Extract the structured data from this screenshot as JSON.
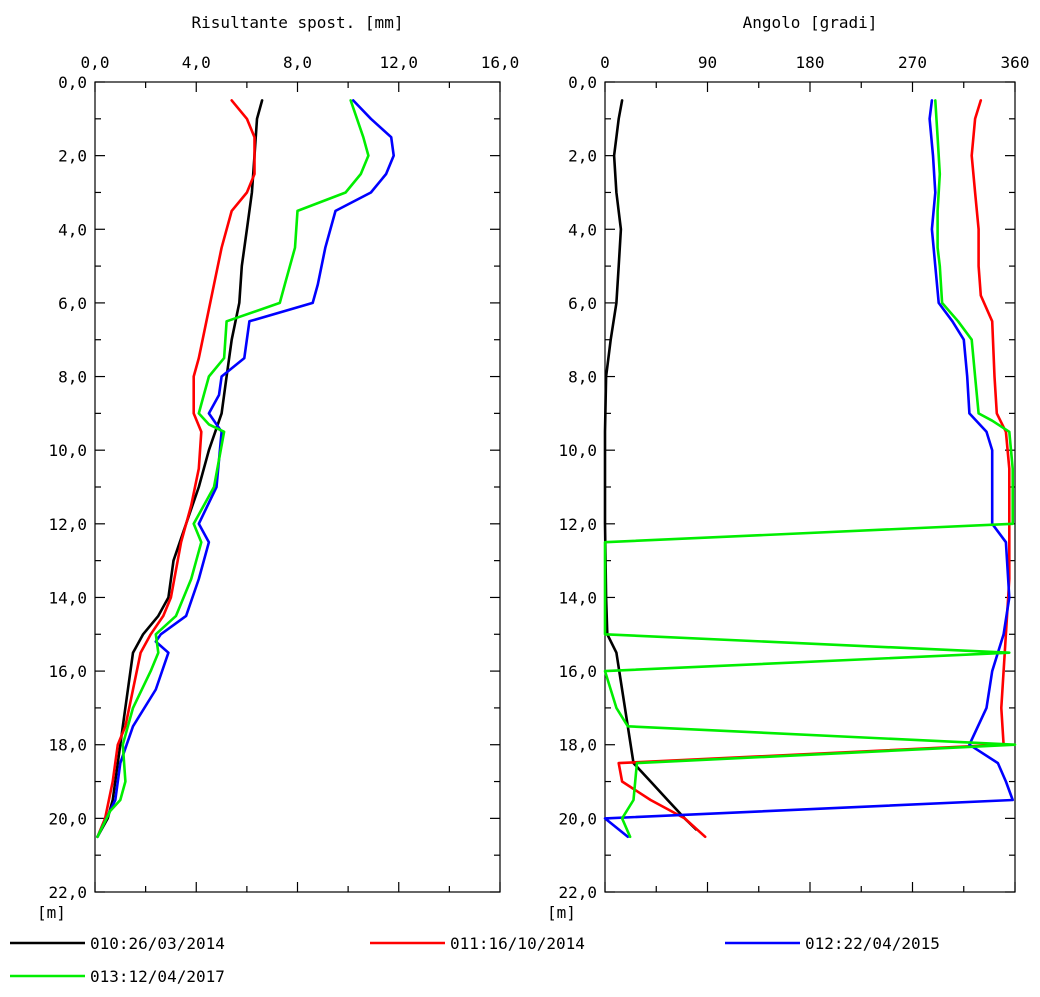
{
  "legend": [
    {
      "label": "010:26/03/2014",
      "color": "#000000"
    },
    {
      "label": "011:16/10/2014",
      "color": "#ff0000"
    },
    {
      "label": "012:22/04/2015",
      "color": "#0000ff"
    },
    {
      "label": "013:12/04/2017",
      "color": "#00ee00"
    }
  ],
  "chart_data": [
    {
      "type": "line",
      "title": "Risultante spost. [mm]",
      "ylabel": "[m]",
      "x_axis": {
        "range": [
          0,
          16
        ],
        "position": "top",
        "ticks": [
          "0,0",
          "4,0",
          "8,0",
          "12,0",
          "16,0"
        ]
      },
      "y_axis": {
        "range": [
          0,
          22
        ],
        "inverted": true,
        "ticks": [
          "0,0",
          "2,0",
          "4,0",
          "6,0",
          "8,0",
          "10,0",
          "12,0",
          "14,0",
          "16,0",
          "18,0",
          "20,0",
          "22,0"
        ]
      },
      "series": [
        {
          "name": "010:26/03/2014",
          "color": "#000000",
          "points": [
            [
              6.6,
              0.5
            ],
            [
              6.4,
              1.0
            ],
            [
              6.3,
              2.0
            ],
            [
              6.2,
              3.0
            ],
            [
              6.0,
              4.0
            ],
            [
              5.8,
              5.0
            ],
            [
              5.7,
              6.0
            ],
            [
              5.4,
              7.0
            ],
            [
              5.2,
              8.0
            ],
            [
              5.0,
              9.0
            ],
            [
              4.5,
              10.0
            ],
            [
              4.1,
              11.0
            ],
            [
              3.6,
              12.0
            ],
            [
              3.1,
              13.0
            ],
            [
              2.9,
              14.0
            ],
            [
              2.5,
              14.5
            ],
            [
              1.9,
              15.0
            ],
            [
              1.5,
              15.5
            ],
            [
              1.3,
              16.5
            ],
            [
              1.1,
              17.5
            ],
            [
              0.9,
              18.5
            ],
            [
              0.7,
              19.5
            ],
            [
              0.5,
              20.0
            ],
            [
              0.1,
              20.5
            ]
          ]
        },
        {
          "name": "011:16/10/2014",
          "color": "#ff0000",
          "points": [
            [
              5.4,
              0.5
            ],
            [
              6.0,
              1.0
            ],
            [
              6.3,
              1.5
            ],
            [
              6.3,
              2.5
            ],
            [
              6.0,
              3.0
            ],
            [
              5.4,
              3.5
            ],
            [
              5.0,
              4.5
            ],
            [
              4.7,
              5.5
            ],
            [
              4.4,
              6.5
            ],
            [
              4.1,
              7.5
            ],
            [
              3.9,
              8.0
            ],
            [
              3.9,
              9.0
            ],
            [
              4.2,
              9.5
            ],
            [
              4.1,
              10.5
            ],
            [
              3.8,
              11.5
            ],
            [
              3.4,
              12.5
            ],
            [
              3.0,
              14.0
            ],
            [
              2.7,
              14.5
            ],
            [
              2.2,
              15.0
            ],
            [
              1.8,
              15.5
            ],
            [
              1.5,
              16.5
            ],
            [
              1.2,
              17.5
            ],
            [
              0.9,
              18.0
            ],
            [
              0.7,
              19.0
            ],
            [
              0.4,
              20.0
            ],
            [
              0.1,
              20.5
            ]
          ]
        },
        {
          "name": "012:22/04/2015",
          "color": "#0000ff",
          "points": [
            [
              10.2,
              0.5
            ],
            [
              10.9,
              1.0
            ],
            [
              11.7,
              1.5
            ],
            [
              11.8,
              2.0
            ],
            [
              11.5,
              2.5
            ],
            [
              10.9,
              3.0
            ],
            [
              9.5,
              3.5
            ],
            [
              9.1,
              4.5
            ],
            [
              8.8,
              5.5
            ],
            [
              8.6,
              6.0
            ],
            [
              6.1,
              6.5
            ],
            [
              5.9,
              7.5
            ],
            [
              5.0,
              8.0
            ],
            [
              4.9,
              8.5
            ],
            [
              4.5,
              9.0
            ],
            [
              5.0,
              9.5
            ],
            [
              4.8,
              11.0
            ],
            [
              4.1,
              12.0
            ],
            [
              4.5,
              12.5
            ],
            [
              4.1,
              13.5
            ],
            [
              3.6,
              14.5
            ],
            [
              2.6,
              15.0
            ],
            [
              2.4,
              15.2
            ],
            [
              2.9,
              15.5
            ],
            [
              2.4,
              16.5
            ],
            [
              1.5,
              17.5
            ],
            [
              1.0,
              18.5
            ],
            [
              0.8,
              19.5
            ],
            [
              0.1,
              20.5
            ]
          ]
        },
        {
          "name": "013:12/04/2017",
          "color": "#00ee00",
          "points": [
            [
              10.1,
              0.5
            ],
            [
              10.6,
              1.5
            ],
            [
              10.8,
              2.0
            ],
            [
              10.5,
              2.5
            ],
            [
              9.9,
              3.0
            ],
            [
              8.0,
              3.5
            ],
            [
              7.9,
              4.5
            ],
            [
              7.5,
              5.5
            ],
            [
              7.3,
              6.0
            ],
            [
              5.2,
              6.5
            ],
            [
              5.1,
              7.5
            ],
            [
              4.5,
              8.0
            ],
            [
              4.3,
              8.5
            ],
            [
              4.1,
              9.0
            ],
            [
              4.5,
              9.3
            ],
            [
              5.1,
              9.5
            ],
            [
              4.7,
              11.0
            ],
            [
              3.9,
              12.0
            ],
            [
              4.2,
              12.5
            ],
            [
              3.8,
              13.5
            ],
            [
              3.2,
              14.5
            ],
            [
              2.4,
              15.0
            ],
            [
              2.5,
              15.5
            ],
            [
              2.2,
              16.0
            ],
            [
              1.5,
              17.0
            ],
            [
              1.1,
              18.0
            ],
            [
              1.2,
              19.0
            ],
            [
              1.0,
              19.5
            ],
            [
              0.6,
              19.8
            ],
            [
              0.1,
              20.5
            ]
          ]
        }
      ]
    },
    {
      "type": "line",
      "title": "Angolo [gradi]",
      "ylabel": "[m]",
      "x_axis": {
        "range": [
          0,
          360
        ],
        "position": "top",
        "ticks": [
          "0",
          "90",
          "180",
          "270",
          "360"
        ]
      },
      "y_axis": {
        "range": [
          0,
          22
        ],
        "inverted": true,
        "ticks": [
          "0,0",
          "2,0",
          "4,0",
          "6,0",
          "8,0",
          "10,0",
          "12,0",
          "14,0",
          "16,0",
          "18,0",
          "20,0",
          "22,0"
        ]
      },
      "series": [
        {
          "name": "010:26/03/2014",
          "color": "#000000",
          "points": [
            [
              15,
              0.5
            ],
            [
              12,
              1.0
            ],
            [
              8,
              2.0
            ],
            [
              10,
              3.0
            ],
            [
              14,
              4.0
            ],
            [
              12,
              5.0
            ],
            [
              10,
              6.0
            ],
            [
              5,
              7.0
            ],
            [
              1,
              8.0
            ],
            [
              0,
              9.5
            ],
            [
              0,
              12.0
            ],
            [
              1,
              14.0
            ],
            [
              2,
              15.0
            ],
            [
              10,
              15.5
            ],
            [
              15,
              16.5
            ],
            [
              20,
              17.5
            ],
            [
              25,
              18.5
            ],
            [
              40,
              19.0
            ],
            [
              55,
              19.5
            ],
            [
              70,
              20.0
            ],
            [
              80,
              20.3
            ]
          ]
        },
        {
          "name": "011:16/10/2014",
          "color": "#ff0000",
          "points": [
            [
              330,
              0.5
            ],
            [
              325,
              1.0
            ],
            [
              322,
              2.0
            ],
            [
              325,
              3.0
            ],
            [
              328,
              4.0
            ],
            [
              328,
              5.0
            ],
            [
              330,
              5.8
            ],
            [
              340,
              6.5
            ],
            [
              342,
              8.0
            ],
            [
              344,
              9.0
            ],
            [
              352,
              9.5
            ],
            [
              355,
              10.5
            ],
            [
              355,
              12.0
            ],
            [
              355,
              13.5
            ],
            [
              352,
              15.0
            ],
            [
              350,
              16.0
            ],
            [
              348,
              17.0
            ],
            [
              350,
              18.0
            ],
            [
              12,
              18.5
            ],
            [
              15,
              19.0
            ],
            [
              40,
              19.5
            ],
            [
              70,
              20.0
            ],
            [
              88,
              20.5
            ]
          ]
        },
        {
          "name": "012:22/04/2015",
          "color": "#0000ff",
          "points": [
            [
              287,
              0.5
            ],
            [
              285,
              1.0
            ],
            [
              288,
              2.0
            ],
            [
              290,
              3.0
            ],
            [
              287,
              4.0
            ],
            [
              290,
              5.0
            ],
            [
              293,
              6.0
            ],
            [
              305,
              6.5
            ],
            [
              315,
              7.0
            ],
            [
              318,
              8.0
            ],
            [
              320,
              9.0
            ],
            [
              335,
              9.5
            ],
            [
              340,
              10.0
            ],
            [
              340,
              12.0
            ],
            [
              352,
              12.5
            ],
            [
              355,
              14.0
            ],
            [
              350,
              15.0
            ],
            [
              340,
              16.0
            ],
            [
              335,
              17.0
            ],
            [
              320,
              18.0
            ],
            [
              345,
              18.5
            ],
            [
              352,
              19.0
            ],
            [
              358,
              19.5
            ],
            [
              0,
              20.0
            ],
            [
              20,
              20.5
            ]
          ]
        },
        {
          "name": "013:12/04/2017",
          "color": "#00ee00",
          "points": [
            [
              290,
              0.5
            ],
            [
              292,
              1.5
            ],
            [
              294,
              2.5
            ],
            [
              292,
              3.5
            ],
            [
              292,
              4.5
            ],
            [
              294,
              5.0
            ],
            [
              296,
              6.0
            ],
            [
              310,
              6.5
            ],
            [
              322,
              7.0
            ],
            [
              325,
              8.0
            ],
            [
              328,
              9.0
            ],
            [
              340,
              9.2
            ],
            [
              355,
              9.5
            ],
            [
              358,
              10.5
            ],
            [
              358,
              12.0
            ],
            [
              0,
              12.5
            ],
            [
              0,
              15.0
            ],
            [
              355,
              15.5
            ],
            [
              0,
              16.0
            ],
            [
              10,
              17.0
            ],
            [
              20,
              17.5
            ],
            [
              360,
              18.0
            ],
            [
              28,
              18.5
            ],
            [
              25,
              19.5
            ],
            [
              15,
              20.0
            ],
            [
              22,
              20.5
            ]
          ]
        }
      ]
    }
  ]
}
